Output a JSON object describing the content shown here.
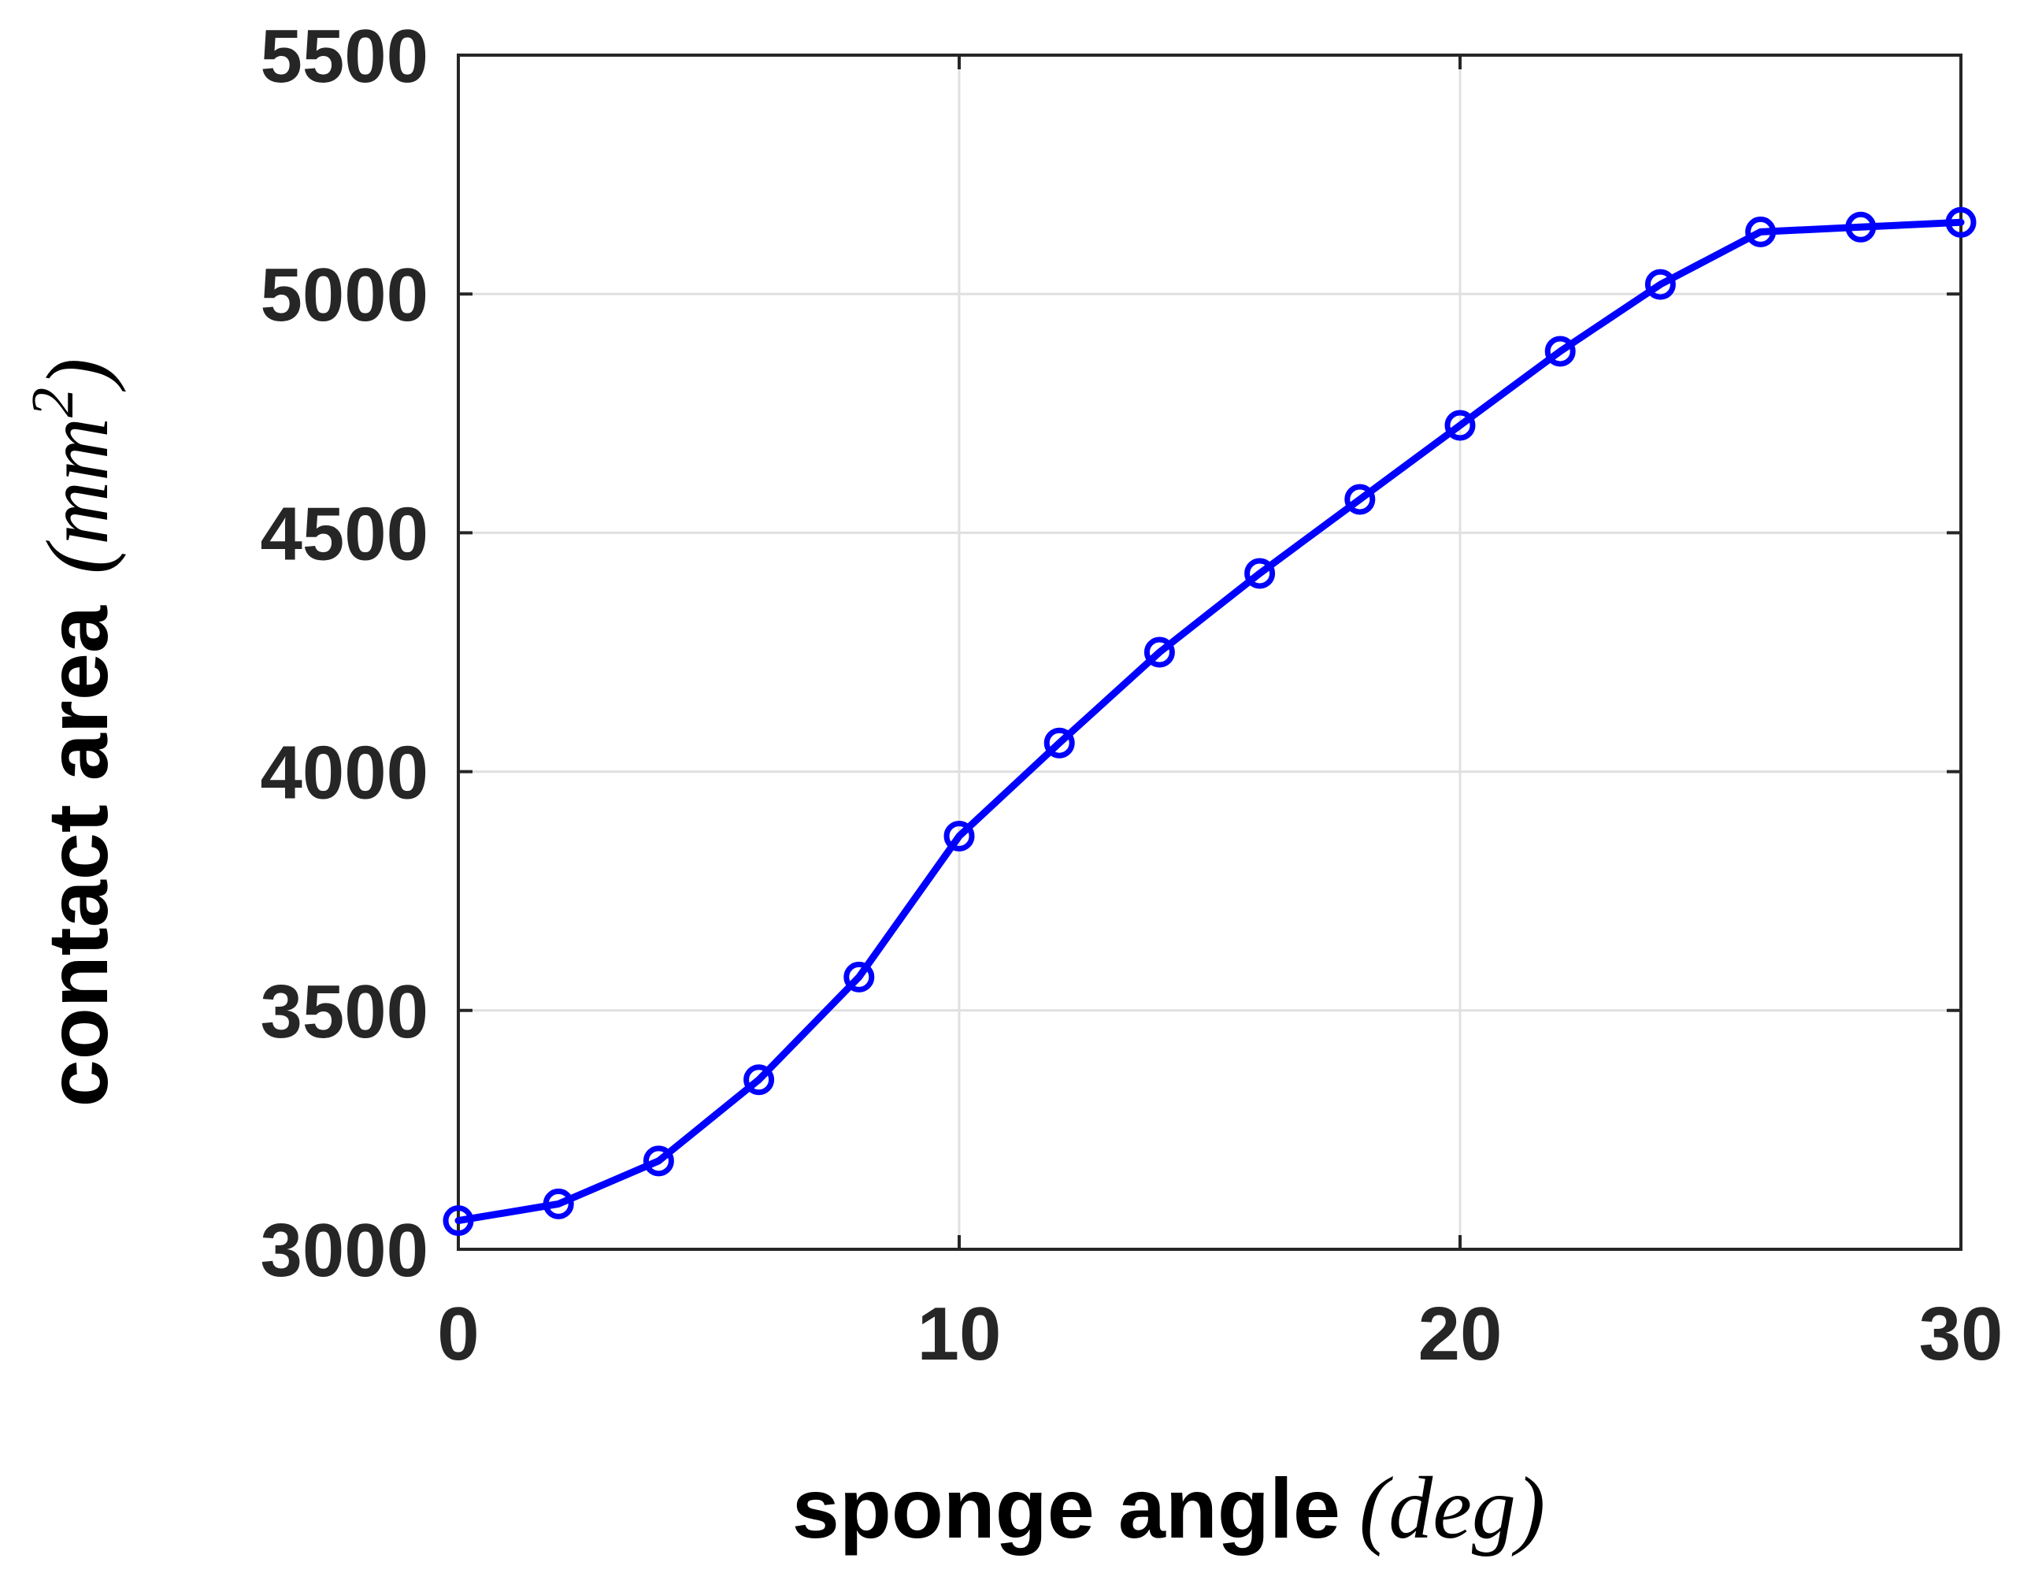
{
  "chart_data": {
    "type": "line",
    "title": "",
    "xlabel": "sponge angle",
    "xlabel_unit": "deg",
    "ylabel": "contact area",
    "ylabel_unit": "mm",
    "ylabel_unit_exponent": "2",
    "xlim": [
      0,
      30
    ],
    "ylim": [
      3000,
      5500
    ],
    "xticks": [
      0,
      10,
      20,
      30
    ],
    "yticks": [
      3000,
      3500,
      4000,
      4500,
      5000,
      5500
    ],
    "grid": true,
    "marker": "circle",
    "series": [
      {
        "color": "#0000ff",
        "x": [
          0,
          2,
          4,
          6,
          8,
          10,
          12,
          14,
          16,
          18,
          20,
          22,
          24,
          26,
          28,
          30
        ],
        "y": [
          3060,
          3095,
          3185,
          3355,
          3570,
          3865,
          4060,
          4250,
          4415,
          4570,
          4725,
          4880,
          5020,
          5130,
          5140,
          5150
        ]
      }
    ],
    "colors": {
      "line": "#0000ff",
      "grid": "#e0e0e0",
      "axes": "#262626",
      "tick_text": "#262626"
    }
  }
}
